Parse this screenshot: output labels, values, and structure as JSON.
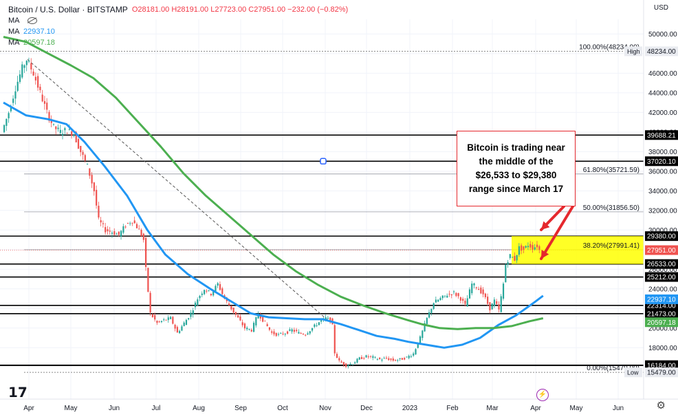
{
  "header": {
    "title": "Bitcoin / U.S. Dollar · BITSTAMP",
    "ohlc": {
      "o": "O28181.00",
      "h": "H28191.00",
      "l": "L27723.00",
      "c": "C27951.00",
      "change": "−232.00 (−0.82%)"
    },
    "ma_rows": [
      {
        "label": "MA",
        "value": ""
      },
      {
        "label": "MA",
        "value": "22937.10"
      },
      {
        "label": "MA",
        "value": "20597.18"
      }
    ],
    "currency": "USD"
  },
  "annotation": {
    "lines": [
      "Bitcoin is trading near",
      "the middle of the",
      "$26,533 to $29,380",
      "range since March 17"
    ]
  },
  "colors": {
    "up": "#26a69a",
    "down": "#ef5350",
    "ma_blue": "#2196f3",
    "ma_green": "#4caf50",
    "zone": "#ffff00",
    "arrow": "#e5282d"
  },
  "chart_data": {
    "type": "candlestick",
    "ylim": [
      15000,
      51500
    ],
    "x_ticks": [
      "Apr",
      "May",
      "Jun",
      "Jul",
      "Aug",
      "Sep",
      "Oct",
      "Nov",
      "Dec",
      "2023",
      "Feb",
      "Mar",
      "Apr",
      "May",
      "Jun"
    ],
    "y_ticks": [
      "50000.00",
      "48000.00",
      "46000.00",
      "44000.00",
      "42000.00",
      "40000.00",
      "38000.00",
      "36000.00",
      "34000.00",
      "32000.00",
      "30000.00",
      "28000.00",
      "26000.00",
      "24000.00",
      "22000.00",
      "20000.00",
      "18000.00"
    ],
    "price_path": [
      [
        0,
        40000
      ],
      [
        3,
        42000
      ],
      [
        6,
        44500
      ],
      [
        9,
        46500
      ],
      [
        11,
        47400
      ],
      [
        14,
        46000
      ],
      [
        17,
        44000
      ],
      [
        20,
        42000
      ],
      [
        23,
        40500
      ],
      [
        26,
        40000
      ],
      [
        29,
        40200
      ],
      [
        32,
        39800
      ],
      [
        35,
        38000
      ],
      [
        38,
        36500
      ],
      [
        41,
        34000
      ],
      [
        43,
        31000
      ],
      [
        46,
        30000
      ],
      [
        49,
        29800
      ],
      [
        52,
        29500
      ],
      [
        55,
        30500
      ],
      [
        58,
        31000
      ],
      [
        61,
        30000
      ],
      [
        63,
        29000
      ],
      [
        64,
        26000
      ],
      [
        66,
        21500
      ],
      [
        69,
        20500
      ],
      [
        72,
        20800
      ],
      [
        75,
        21000
      ],
      [
        78,
        19500
      ],
      [
        81,
        20500
      ],
      [
        84,
        21500
      ],
      [
        87,
        23000
      ],
      [
        90,
        24000
      ],
      [
        93,
        23500
      ],
      [
        96,
        24500
      ],
      [
        99,
        23000
      ],
      [
        102,
        22000
      ],
      [
        105,
        21000
      ],
      [
        108,
        20000
      ],
      [
        111,
        19800
      ],
      [
        114,
        21500
      ],
      [
        117,
        20500
      ],
      [
        120,
        19500
      ],
      [
        123,
        19300
      ],
      [
        126,
        19500
      ],
      [
        129,
        19800
      ],
      [
        132,
        19500
      ],
      [
        135,
        19400
      ],
      [
        138,
        20000
      ],
      [
        141,
        20600
      ],
      [
        144,
        21000
      ],
      [
        146,
        20800
      ],
      [
        147,
        20200
      ],
      [
        148,
        17500
      ],
      [
        150,
        16600
      ],
      [
        153,
        16200
      ],
      [
        156,
        16400
      ],
      [
        159,
        16900
      ],
      [
        162,
        17100
      ],
      [
        165,
        17000
      ],
      [
        168,
        16800
      ],
      [
        171,
        16900
      ],
      [
        174,
        16700
      ],
      [
        177,
        16800
      ],
      [
        180,
        17000
      ],
      [
        183,
        17400
      ],
      [
        186,
        19000
      ],
      [
        189,
        21000
      ],
      [
        192,
        22600
      ],
      [
        195,
        23000
      ],
      [
        198,
        23400
      ],
      [
        201,
        23600
      ],
      [
        204,
        23000
      ],
      [
        206,
        22300
      ],
      [
        209,
        24500
      ],
      [
        211,
        24200
      ],
      [
        214,
        23500
      ],
      [
        217,
        22000
      ],
      [
        219,
        22800
      ],
      [
        221,
        21800
      ],
      [
        223,
        24500
      ],
      [
        224,
        26500
      ],
      [
        226,
        27400
      ],
      [
        228,
        27000
      ],
      [
        230,
        28200
      ],
      [
        232,
        28000
      ],
      [
        234,
        28500
      ],
      [
        236,
        28200
      ],
      [
        238,
        28400
      ],
      [
        239,
        27951
      ]
    ],
    "series": [
      {
        "name": "MA",
        "values": [
          [
            0,
            43000
          ],
          [
            10,
            41700
          ],
          [
            20,
            41300
          ],
          [
            28,
            40800
          ],
          [
            36,
            39000
          ],
          [
            45,
            36500
          ],
          [
            55,
            33500
          ],
          [
            64,
            30000
          ],
          [
            72,
            27500
          ],
          [
            82,
            25500
          ],
          [
            92,
            24000
          ],
          [
            100,
            22900
          ],
          [
            110,
            21500
          ],
          [
            118,
            21100
          ],
          [
            126,
            21000
          ],
          [
            134,
            20900
          ],
          [
            142,
            20900
          ],
          [
            150,
            20400
          ],
          [
            158,
            19800
          ],
          [
            166,
            19200
          ],
          [
            174,
            18900
          ],
          [
            180,
            18600
          ],
          [
            188,
            18300
          ],
          [
            196,
            18000
          ],
          [
            204,
            18300
          ],
          [
            212,
            19000
          ],
          [
            220,
            20300
          ],
          [
            228,
            21300
          ],
          [
            236,
            22600
          ],
          [
            240,
            23300
          ]
        ]
      },
      {
        "name": "MA",
        "values": [
          [
            0,
            49700
          ],
          [
            10,
            49200
          ],
          [
            20,
            48000
          ],
          [
            30,
            46800
          ],
          [
            40,
            45500
          ],
          [
            50,
            43500
          ],
          [
            60,
            41000
          ],
          [
            70,
            38500
          ],
          [
            80,
            35800
          ],
          [
            90,
            33500
          ],
          [
            100,
            31500
          ],
          [
            110,
            29500
          ],
          [
            120,
            27500
          ],
          [
            130,
            25800
          ],
          [
            140,
            24400
          ],
          [
            150,
            23200
          ],
          [
            160,
            22300
          ],
          [
            170,
            21500
          ],
          [
            180,
            20800
          ],
          [
            186,
            20400
          ],
          [
            194,
            20000
          ],
          [
            202,
            19900
          ],
          [
            210,
            20000
          ],
          [
            218,
            20000
          ],
          [
            226,
            20200
          ],
          [
            234,
            20700
          ],
          [
            240,
            21000
          ]
        ]
      }
    ],
    "levels": [
      {
        "label": "39688.21",
        "value": 39688.21,
        "style": "solid"
      },
      {
        "label": "37020.10",
        "value": 37020.1,
        "style": "solid"
      },
      {
        "label": "29380.00",
        "value": 29380.0,
        "style": "solid"
      },
      {
        "label": "26533.00",
        "value": 26533.0,
        "style": "solid"
      },
      {
        "label": "25212.00",
        "value": 25212.0,
        "style": "solid"
      },
      {
        "label": "22314.00",
        "value": 22314.0,
        "style": "solid"
      },
      {
        "label": "21473.00",
        "value": 21473.0,
        "style": "solid"
      },
      {
        "label": "16218.00",
        "value": 16218.0,
        "style": "solid"
      },
      {
        "label": "16184.00",
        "value": 16184.0,
        "style": "solid"
      }
    ],
    "fib_levels": [
      {
        "text": "100.00%(48234.00)",
        "value": 48234.0
      },
      {
        "text": "61.80%(35721.59)",
        "value": 35721.59
      },
      {
        "text": "50.00%(31856.50)",
        "value": 31856.5
      },
      {
        "text": "38.20%(27991.41)",
        "value": 27991.41
      },
      {
        "text": "0.00%(15479.00)",
        "value": 15479.0
      }
    ],
    "axis_badges": [
      {
        "label": "High",
        "text": "48234.00",
        "value": 48234.0,
        "kind": "gray"
      },
      {
        "label": "",
        "text": "27951.00",
        "value": 27951.0,
        "kind": "red"
      },
      {
        "label": "",
        "text": "22937.10",
        "value": 22937.1,
        "kind": "blue"
      },
      {
        "label": "",
        "text": "20597.18",
        "value": 20597.18,
        "kind": "green"
      },
      {
        "label": "Low",
        "text": "15479.00",
        "value": 15479.0,
        "kind": "gray"
      }
    ],
    "last_price": 27951.0,
    "range_box": {
      "start_day": 230,
      "end_day": 240,
      "low": 26533,
      "high": 29380
    }
  }
}
